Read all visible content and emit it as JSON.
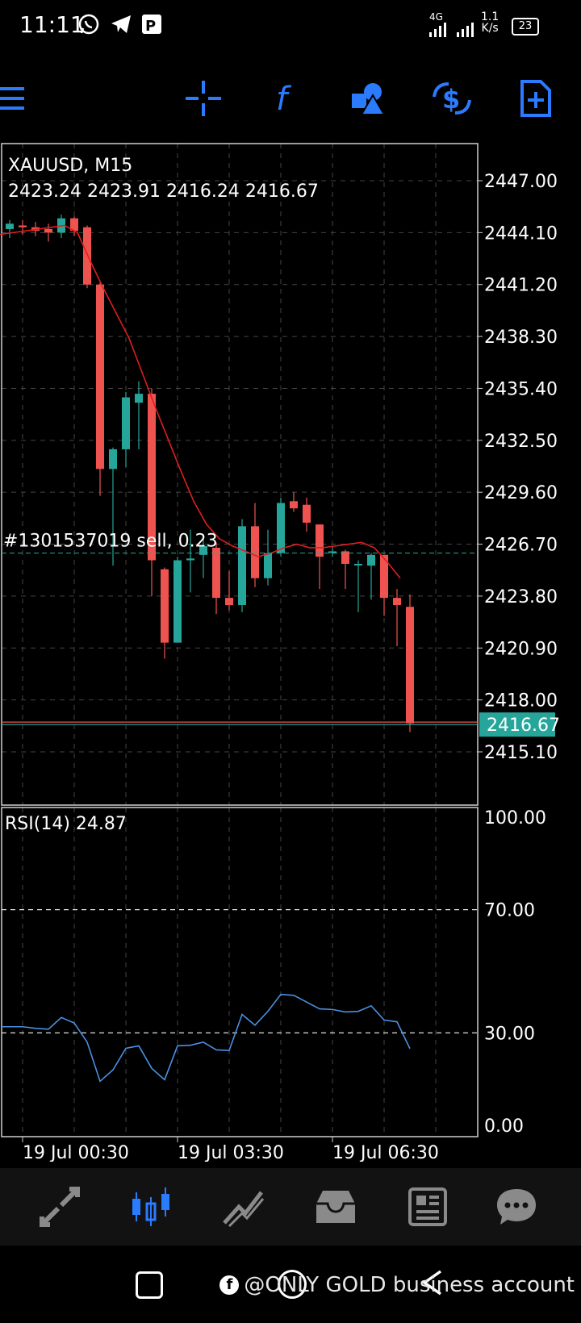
{
  "status_bar": {
    "time": "11:11",
    "network": "4G",
    "speed_value": "1.1",
    "speed_unit": "K/s",
    "battery": "23"
  },
  "toolbar": {
    "menu_icon": "menu-icon",
    "items": [
      {
        "name": "crosshair-icon"
      },
      {
        "name": "function-icon"
      },
      {
        "name": "objects-icon"
      },
      {
        "name": "trade-icon"
      },
      {
        "name": "add-file-icon"
      }
    ],
    "accent": "#2b7bff"
  },
  "chart": {
    "symbol_line": "XAUUSD, M15",
    "ohlc_line": "2423.24 2423.91 2416.24 2416.67",
    "order_label": "#1301537019 sell, 0.23",
    "current_price": "2416.67",
    "price_labels": [
      "2447.00",
      "2444.10",
      "2441.20",
      "2438.30",
      "2435.40",
      "2432.50",
      "2429.60",
      "2426.70",
      "2423.80",
      "2420.90",
      "2418.00",
      "2415.10"
    ],
    "rsi_label": "RSI(14) 24.87",
    "rsi_levels": [
      "100.00",
      "70.00",
      "30.00",
      "0.00"
    ],
    "time_labels": [
      "19 Jul 00:30",
      "19 Jul 03:30",
      "19 Jul 06:30"
    ],
    "colors": {
      "bull": "#26a69a",
      "bear": "#ef5350",
      "ma": "#e01e1e",
      "rsi": "#4a90e2",
      "grid": "#444444",
      "order_line": "#26a69a"
    }
  },
  "chart_data": {
    "type": "candlestick",
    "candles": [
      {
        "o": 2444.3,
        "h": 2444.8,
        "l": 2443.8,
        "c": 2444.6
      },
      {
        "o": 2444.5,
        "h": 2444.8,
        "l": 2444.0,
        "c": 2444.4
      },
      {
        "o": 2444.4,
        "h": 2444.7,
        "l": 2443.9,
        "c": 2444.2
      },
      {
        "o": 2444.3,
        "h": 2444.6,
        "l": 2443.6,
        "c": 2444.1
      },
      {
        "o": 2444.1,
        "h": 2445.1,
        "l": 2443.8,
        "c": 2444.9
      },
      {
        "o": 2444.9,
        "h": 2445.0,
        "l": 2443.9,
        "c": 2444.2
      },
      {
        "o": 2444.4,
        "h": 2444.5,
        "l": 2441.0,
        "c": 2441.2
      },
      {
        "o": 2441.2,
        "h": 2441.3,
        "l": 2429.4,
        "c": 2430.9
      },
      {
        "o": 2430.9,
        "h": 2432.1,
        "l": 2425.5,
        "c": 2432.0
      },
      {
        "o": 2432.0,
        "h": 2435.2,
        "l": 2431.0,
        "c": 2434.9
      },
      {
        "o": 2434.6,
        "h": 2435.8,
        "l": 2432.0,
        "c": 2435.1
      },
      {
        "o": 2435.1,
        "h": 2435.4,
        "l": 2423.8,
        "c": 2425.8
      },
      {
        "o": 2425.3,
        "h": 2425.4,
        "l": 2420.3,
        "c": 2421.2
      },
      {
        "o": 2421.2,
        "h": 2426.0,
        "l": 2421.2,
        "c": 2425.8
      },
      {
        "o": 2425.8,
        "h": 2427.5,
        "l": 2424.0,
        "c": 2425.9
      },
      {
        "o": 2426.1,
        "h": 2427.0,
        "l": 2424.8,
        "c": 2426.6
      },
      {
        "o": 2426.5,
        "h": 2426.8,
        "l": 2422.8,
        "c": 2423.7
      },
      {
        "o": 2423.7,
        "h": 2425.2,
        "l": 2423.0,
        "c": 2423.3
      },
      {
        "o": 2423.3,
        "h": 2428.1,
        "l": 2422.9,
        "c": 2427.7
      },
      {
        "o": 2427.7,
        "h": 2429.0,
        "l": 2424.3,
        "c": 2424.8
      },
      {
        "o": 2424.8,
        "h": 2427.5,
        "l": 2424.4,
        "c": 2426.2
      },
      {
        "o": 2426.2,
        "h": 2429.3,
        "l": 2426.0,
        "c": 2429.0
      },
      {
        "o": 2429.1,
        "h": 2429.6,
        "l": 2428.5,
        "c": 2428.7
      },
      {
        "o": 2428.9,
        "h": 2429.3,
        "l": 2427.4,
        "c": 2427.9
      },
      {
        "o": 2427.8,
        "h": 2427.8,
        "l": 2424.2,
        "c": 2426.0
      },
      {
        "o": 2426.3,
        "h": 2426.6,
        "l": 2426.0,
        "c": 2426.3
      },
      {
        "o": 2426.3,
        "h": 2426.4,
        "l": 2424.2,
        "c": 2425.6
      },
      {
        "o": 2425.6,
        "h": 2425.8,
        "l": 2422.9,
        "c": 2425.6
      },
      {
        "o": 2425.5,
        "h": 2426.2,
        "l": 2423.6,
        "c": 2426.1
      },
      {
        "o": 2426.1,
        "h": 2426.1,
        "l": 2422.7,
        "c": 2423.7
      },
      {
        "o": 2423.7,
        "h": 2424.2,
        "l": 2421.0,
        "c": 2423.3
      },
      {
        "o": 2423.2,
        "h": 2423.9,
        "l": 2416.2,
        "c": 2416.7
      }
    ],
    "ma": [
      2444.0,
      2444.1,
      2444.2,
      2444.3,
      2444.4,
      2444.5,
      2444.1,
      2442.5,
      2441.0,
      2439.6,
      2438.2,
      2436.3,
      2434.4,
      2432.6,
      2430.8,
      2429.1,
      2427.8,
      2427.0,
      2426.6,
      2426.3,
      2426.0,
      2426.2,
      2426.5,
      2426.7,
      2426.5,
      2426.5,
      2426.6,
      2426.7,
      2426.8,
      2426.5,
      2425.7,
      2424.8
    ],
    "rsi": [
      32.0,
      32.0,
      31.5,
      31.2,
      35.0,
      33.2,
      27.0,
      14.3,
      18.0,
      25.0,
      25.8,
      18.5,
      14.8,
      25.8,
      26.0,
      27.0,
      24.5,
      24.3,
      36.0,
      32.5,
      37.0,
      42.5,
      42.2,
      40.0,
      37.8,
      37.6,
      36.8,
      37.0,
      38.8,
      34.2,
      33.6,
      24.9
    ],
    "ylim": [
      2413.0,
      2448.5
    ],
    "rsi_ylim": [
      0,
      100
    ]
  },
  "bottom_nav": [
    {
      "name": "quotes-icon"
    },
    {
      "name": "chart-icon"
    },
    {
      "name": "trade-tab-icon"
    },
    {
      "name": "history-icon"
    },
    {
      "name": "news-icon"
    },
    {
      "name": "chat-icon"
    }
  ],
  "watermark": "@ONLY GOLD business account"
}
